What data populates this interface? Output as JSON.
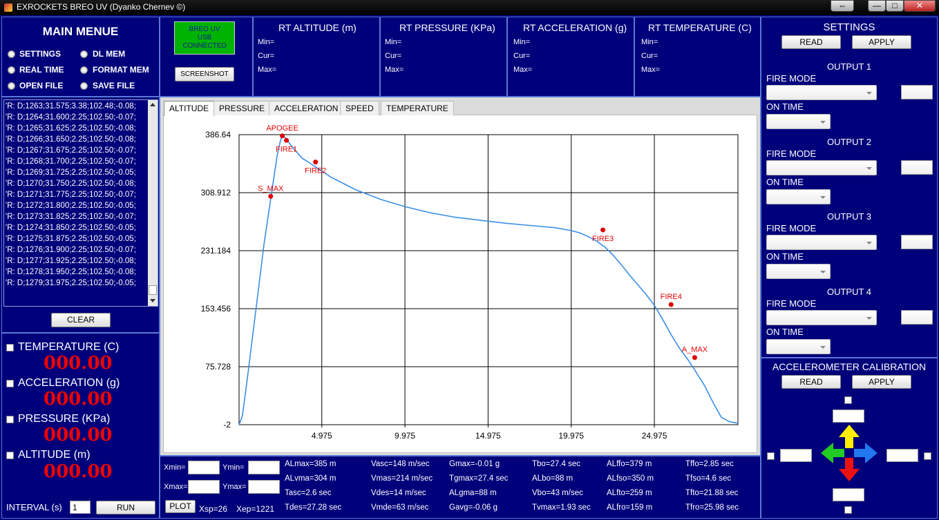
{
  "window": {
    "title": "EXROCKETS BREO UV   (Dyanko Chernev ©)",
    "buttons": [
      "⇔",
      "—",
      "□",
      "✕"
    ]
  },
  "menu": {
    "title": "MAIN MENUE",
    "options": [
      "SETTINGS",
      "DL MEM",
      "REAL TIME",
      "FORMAT MEM",
      "OPEN FILE",
      "SAVE FILE"
    ]
  },
  "log": {
    "lines": [
      "'R: D;1263;31.575;3.38;102.48;-0.08;",
      "'R: D;1264;31.600;2.25;102.50;-0.07;",
      "'R: D;1265;31.625;2.25;102.50;-0.08;",
      "'R: D;1266;31.650;2.25;102.50;-0.08;",
      "'R: D;1267;31.675;2.25;102.50;-0.07;",
      "'R: D;1268;31.700;2.25;102.50;-0.07;",
      "'R: D;1269;31.725;2.25;102.50;-0.05;",
      "'R: D;1270;31.750;2.25;102.50;-0.08;",
      "'R: D;1271;31.775;2.25;102.50;-0.07;",
      "'R: D;1272;31.800;2.25;102.50;-0.05;",
      "'R: D;1273;31.825;2.25;102.50;-0.07;",
      "'R: D;1274;31.850;2.25;102.50;-0.05;",
      "'R: D;1275;31.875;2.25;102.50;-0.05;",
      "'R: D;1276;31.900;2.25;102.50;-0.07;",
      "'R: D;1277;31.925;2.25;102.50;-0.08;",
      "'R: D;1278;31.950;2.25;102.50;-0.08;",
      "'R: D;1279;31.975;2.25;102.50;-0.05;"
    ],
    "clear_label": "CLEAR"
  },
  "readouts": [
    {
      "label": "TEMPERATURE (C)",
      "value": "000.00"
    },
    {
      "label": "ACCELERATION (g)",
      "value": "000.00"
    },
    {
      "label": "PRESSURE (KPa)",
      "value": "000.00"
    },
    {
      "label": "ALTITUDE (m)",
      "value": "000.00"
    }
  ],
  "interval": {
    "label": "INTERVAL (s)",
    "value": "1",
    "run_label": "RUN"
  },
  "usb": {
    "status": "BREO UV\nUSB\nCONNECTED",
    "status_color": "#00b300",
    "screenshot_label": "SCREENSHOT"
  },
  "rt": [
    {
      "title": "RT ALTITUDE (m)",
      "rows": [
        "Min=",
        "Cur=",
        "Max="
      ]
    },
    {
      "title": "RT PRESSURE (KPa)",
      "rows": [
        "Min=",
        "Cur=",
        "Max="
      ]
    },
    {
      "title": "RT ACCELERATION (g)",
      "rows": [
        "Min=",
        "Cur=",
        "Max="
      ]
    },
    {
      "title": "RT TEMPERATURE (C)",
      "rows": [
        "Min=",
        "Cur=",
        "Max="
      ]
    }
  ],
  "tabs": [
    "ALTITUDE",
    "PRESSURE",
    "ACCELERATION",
    "SPEED",
    "TEMPERATURE"
  ],
  "chart_data": {
    "type": "line",
    "xlim": [
      0,
      30
    ],
    "ylim": [
      -2,
      386.64
    ],
    "xticks": [
      "4.975",
      "9.975",
      "14.975",
      "19.975",
      "24.975"
    ],
    "xtick_values": [
      4.975,
      9.975,
      14.975,
      19.975,
      24.975
    ],
    "yticks": [
      "386.64",
      "308.912",
      "231.184",
      "153.456",
      "75.728",
      "-2"
    ],
    "ytick_values": [
      386.64,
      308.912,
      231.184,
      153.456,
      75.728,
      -2
    ],
    "grid": true,
    "line_color": "#3a8ee6",
    "marker_color": "#e00000",
    "series": [
      {
        "x": [
          0,
          0.2,
          0.5,
          1.0,
          1.5,
          1.9,
          2.1,
          2.3,
          2.5,
          2.6,
          2.8,
          3.2,
          3.8,
          4.5,
          5.5,
          7,
          8.5,
          10,
          11.5,
          13,
          14.5,
          16,
          17.5,
          19,
          20,
          20.5,
          21,
          21.5,
          22,
          22.5,
          23,
          23.5,
          24,
          24.5,
          25,
          25.5,
          26,
          26.5,
          27,
          27.5,
          28,
          28.5,
          29,
          29.5,
          30
        ],
        "y": [
          -2,
          10,
          60,
          150,
          240,
          300,
          330,
          360,
          380,
          385,
          382,
          370,
          355,
          345,
          330,
          313,
          300,
          290,
          282,
          276,
          272,
          268,
          265,
          262,
          258,
          255,
          250,
          244,
          236,
          225,
          212,
          198,
          185,
          172,
          157,
          138,
          118,
          100,
          85,
          68,
          50,
          28,
          8,
          2,
          0
        ]
      }
    ],
    "markers": [
      {
        "label": "S_MAX",
        "x": 1.9,
        "y": 304
      },
      {
        "label": "APOGEE",
        "x": 2.6,
        "y": 385
      },
      {
        "label": "FIRE1",
        "x": 2.85,
        "y": 379
      },
      {
        "label": "FIRE2",
        "x": 4.6,
        "y": 350
      },
      {
        "label": "FIRE3",
        "x": 21.88,
        "y": 259
      },
      {
        "label": "FIRE4",
        "x": 25.98,
        "y": 159
      },
      {
        "label": "A_MAX",
        "x": 27.4,
        "y": 88
      }
    ]
  },
  "bounds": {
    "xmin_label": "Xmin=",
    "ymin_label": "Ymin=",
    "xmax_label": "Xmax=",
    "ymax_label": "Ymax=",
    "plot_label": "PLOT",
    "xsp": "Xsp=26",
    "xep": "Xep=1221"
  },
  "stats": [
    [
      "ALmax=385 m",
      "ALvma=304 m",
      "Tasc=2.6 sec",
      "Tdes=27.28 sec"
    ],
    [
      "Vasc=148 m/sec",
      "Vmas=214 m/sec",
      "Vdes=14 m/sec",
      "Vmde=63 m/sec"
    ],
    [
      "Gmax=-0.01 g",
      "Tgmax=27.4 sec",
      "ALgma=88 m",
      "Gavg=-0.06 g"
    ],
    [
      "Tbo=27.4 sec",
      "ALbo=88 m",
      "Vbo=43 m/sec",
      "Tvmax=1.93 sec"
    ],
    [
      "ALffo=379 m",
      "ALfso=350 m",
      "ALfto=259 m",
      "ALfro=159 m"
    ],
    [
      "Tffo=2.85 sec",
      "Tfso=4.6 sec",
      "Tfto=21.88 sec",
      "Tfro=25.98 sec"
    ]
  ],
  "settings": {
    "title": "SETTINGS",
    "read_label": "READ",
    "apply_label": "APPLY",
    "outputs": [
      {
        "title": "OUTPUT 1",
        "fire_mode": "FIRE MODE",
        "on_time": "ON TIME"
      },
      {
        "title": "OUTPUT 2",
        "fire_mode": "FIRE MODE",
        "on_time": "ON TIME"
      },
      {
        "title": "OUTPUT 3",
        "fire_mode": "FIRE MODE",
        "on_time": "ON TIME"
      },
      {
        "title": "OUTPUT 4",
        "fire_mode": "FIRE MODE",
        "on_time": "ON TIME"
      }
    ]
  },
  "calibration": {
    "title": "ACCELEROMETER CALIBRATION",
    "read_label": "READ",
    "apply_label": "APPLY",
    "arrow_colors": {
      "up": "#ffee00",
      "down": "#ee1111",
      "left": "#22cc22",
      "right": "#2277ee"
    }
  }
}
